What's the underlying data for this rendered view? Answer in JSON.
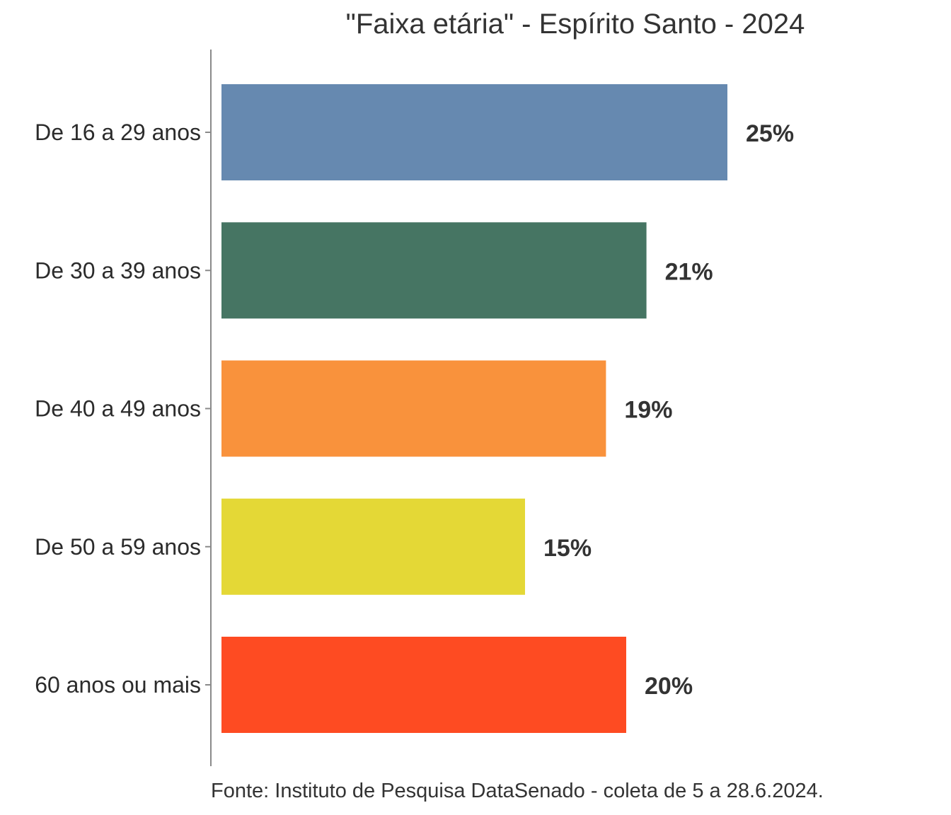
{
  "chart_data": {
    "type": "bar",
    "orientation": "horizontal",
    "title": "\"Faixa etária\" - Espírito Santo - 2024",
    "categories": [
      "De 16 a 29 anos",
      "De 30 a 39 anos",
      "De 40 a 49 anos",
      "De 50 a 59 anos",
      "60 anos ou mais"
    ],
    "values": [
      25,
      21,
      19,
      15,
      20
    ],
    "value_labels": [
      "25%",
      "21%",
      "19%",
      "15%",
      "20%"
    ],
    "colors": [
      "#6689b0",
      "#467563",
      "#f9923c",
      "#e4d836",
      "#fe4b22"
    ],
    "xlabel": "",
    "ylabel": "",
    "xlim": [
      0,
      25
    ],
    "grid": false,
    "legend": "none"
  },
  "source": "Fonte: Instituto de Pesquisa DataSenado - coleta de 5 a 28.6.2024."
}
